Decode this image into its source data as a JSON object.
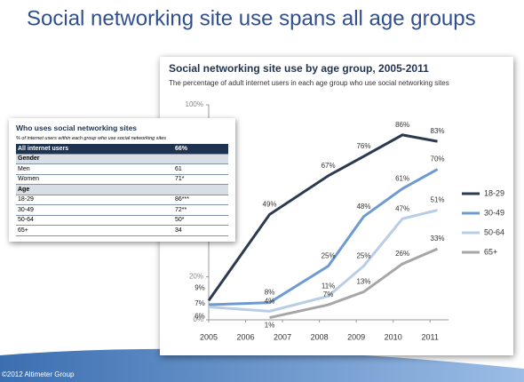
{
  "slide": {
    "title": "Social networking site use spans all age groups",
    "footer": "©2012 Altimeter Group"
  },
  "chart_data": {
    "type": "line",
    "title": "Social networking site use by age group, 2005-2011",
    "subtitle": "The percentage of adult internet users in each age group who use social networking sites",
    "x": [
      2005,
      2006.65,
      2008.24,
      2009.2,
      2010.25,
      2011.2
    ],
    "xlim": [
      2005,
      2011.5
    ],
    "xticks": [
      2005,
      2006,
      2007,
      2008,
      2009,
      2010,
      2011
    ],
    "ylim": [
      0,
      100
    ],
    "yticks": [
      {
        "value": 0,
        "label": "0%"
      },
      {
        "value": 20,
        "label": "20%"
      },
      {
        "value": 100,
        "label": "100%"
      }
    ],
    "legend": "right",
    "series": [
      {
        "name": "18-29",
        "color": "#2b3a4f",
        "values": [
          9,
          49,
          67,
          76,
          86,
          83
        ],
        "value_labels": [
          "9%",
          "49%",
          "67%",
          "76%",
          "86%",
          "83%"
        ]
      },
      {
        "name": "30-49",
        "color": "#6d9bd1",
        "values": [
          7,
          8,
          25,
          48,
          61,
          70
        ],
        "value_labels": [
          "7%",
          "8%",
          "25%",
          "48%",
          "61%",
          "70%"
        ]
      },
      {
        "name": "50-64",
        "color": "#b9cde5",
        "values": [
          6,
          4,
          11,
          25,
          47,
          51
        ],
        "value_labels": [
          "6%",
          "4%",
          "11%",
          "25%",
          "47%",
          "51%"
        ]
      },
      {
        "name": "65+",
        "color": "#a6a6a6",
        "values": [
          null,
          1,
          7,
          13,
          26,
          33
        ],
        "value_labels": [
          null,
          "1%",
          "7%",
          "13%",
          "26%",
          "33%"
        ]
      }
    ]
  },
  "table": {
    "title": "Who uses social networking sites",
    "subtitle": "% of internet users within each group who use social networking sites",
    "rows": [
      [
        "All internet users",
        "66%"
      ],
      [
        "Gender",
        null
      ],
      [
        "Men",
        "61"
      ],
      [
        "Women",
        "71*"
      ],
      [
        "Age",
        null
      ],
      [
        "18-29",
        "86***"
      ],
      [
        "30-49",
        "72**"
      ],
      [
        "50-64",
        "50*"
      ],
      [
        "65+",
        "34"
      ]
    ]
  }
}
